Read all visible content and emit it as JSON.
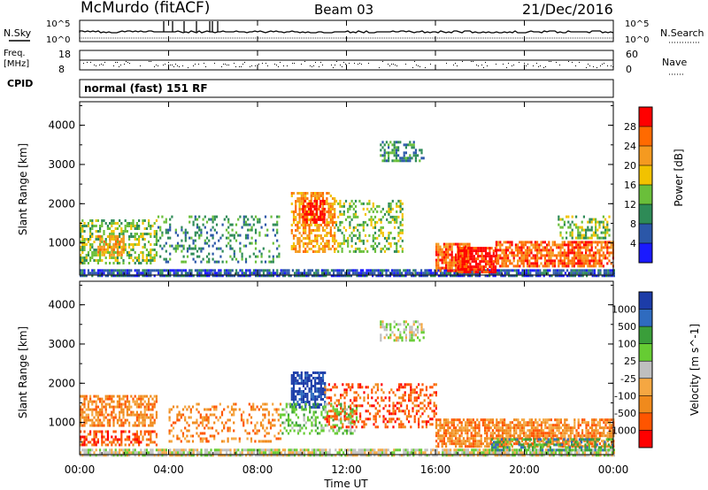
{
  "header": {
    "station": "McMurdo (fitACF)",
    "beam": "Beam 03",
    "date": "21/Dec/2016"
  },
  "aux_panels": {
    "nsky_label": "N.Sky",
    "nsearch_label": "N.Search",
    "nsky_ticks": [
      "10^5",
      "10^0"
    ],
    "nsearch_ticks": [
      "10^5",
      "10^0"
    ],
    "freq_label_1": "Freq.",
    "freq_label_2": "[MHz]",
    "freq_ticks": [
      "18",
      "8"
    ],
    "nave_label": "Nave",
    "nave_ticks": [
      "60",
      "0"
    ],
    "cpid_label": "CPID",
    "cpid_value": "normal (fast) 151 RF"
  },
  "colors": {
    "power": [
      "#1a1aff",
      "#2b57a8",
      "#2e8b57",
      "#6abf3a",
      "#f2c200",
      "#f59a20",
      "#ff6a00",
      "#ff0000"
    ],
    "velocity": [
      "#1c3ca8",
      "#2f6bbf",
      "#3a9e3a",
      "#66cc33",
      "#bfbfbf",
      "#f5a742",
      "#f08a1c",
      "#ff5500",
      "#ff0000"
    ]
  },
  "chart_data": [
    {
      "type": "heatmap",
      "quantity": "Power",
      "ylabel": "Slant Range [km]",
      "xlabel": "Time UT",
      "ylim": [
        180,
        4600
      ],
      "xlim": [
        0,
        24
      ],
      "x_ticks": [
        "00:00",
        "04:00",
        "08:00",
        "12:00",
        "16:00",
        "20:00",
        "00:00"
      ],
      "y_ticks": [
        1000,
        2000,
        3000,
        4000
      ],
      "colorbar": {
        "label": "Power [dB]",
        "range": [
          0,
          32
        ],
        "ticks": [
          "4",
          "8",
          "12",
          "16",
          "20",
          "24",
          "28"
        ]
      },
      "regions": [
        {
          "t": [
            0.0,
            24.0
          ],
          "r": [
            180,
            330
          ],
          "level": 1,
          "density": 0.8
        },
        {
          "t": [
            0.0,
            3.5
          ],
          "r": [
            450,
            1600
          ],
          "level": 3,
          "density": 0.5
        },
        {
          "t": [
            0.8,
            2.0
          ],
          "r": [
            700,
            1200
          ],
          "level": 5,
          "density": 0.6
        },
        {
          "t": [
            9.5,
            11.5
          ],
          "r": [
            800,
            2300
          ],
          "level": 5,
          "density": 0.6
        },
        {
          "t": [
            10.0,
            11.0
          ],
          "r": [
            1500,
            2100
          ],
          "level": 7,
          "density": 0.7
        },
        {
          "t": [
            13.5,
            15.5
          ],
          "r": [
            3100,
            3600
          ],
          "level": 2,
          "density": 0.5
        },
        {
          "t": [
            16.0,
            17.5
          ],
          "r": [
            300,
            1000
          ],
          "level": 6,
          "density": 0.8
        },
        {
          "t": [
            17.0,
            18.7
          ],
          "r": [
            250,
            900
          ],
          "level": 7,
          "density": 0.85
        },
        {
          "t": [
            18.7,
            24.0
          ],
          "r": [
            400,
            1050
          ],
          "level": 6,
          "density": 0.75
        },
        {
          "t": [
            21.5,
            23.8
          ],
          "r": [
            1100,
            1700
          ],
          "level": 3,
          "density": 0.4
        },
        {
          "t": [
            3.5,
            9.0
          ],
          "r": [
            500,
            1700
          ],
          "level": 2,
          "density": 0.25
        },
        {
          "t": [
            11.5,
            14.5
          ],
          "r": [
            800,
            2100
          ],
          "level": 3,
          "density": 0.35
        }
      ]
    },
    {
      "type": "heatmap",
      "quantity": "Velocity",
      "ylabel": "Slant Range [km]",
      "xlabel": "Time UT",
      "ylim": [
        180,
        4600
      ],
      "xlim": [
        0,
        24
      ],
      "x_ticks": [
        "00:00",
        "04:00",
        "08:00",
        "12:00",
        "16:00",
        "20:00",
        "00:00"
      ],
      "y_ticks": [
        1000,
        2000,
        3000,
        4000
      ],
      "colorbar": {
        "label": "Velocity [m s^-1]",
        "ticks": [
          "1000",
          "500",
          "100",
          "25",
          "-25",
          "-100",
          "-500",
          "-1000"
        ]
      },
      "regions": [
        {
          "t": [
            0.0,
            24.0
          ],
          "r": [
            180,
            330
          ],
          "level": 4,
          "density": 0.8
        },
        {
          "t": [
            0.0,
            3.5
          ],
          "r": [
            900,
            1700
          ],
          "level": 6,
          "density": 0.6
        },
        {
          "t": [
            0.0,
            3.5
          ],
          "r": [
            400,
            800
          ],
          "level": 7,
          "density": 0.5
        },
        {
          "t": [
            9.5,
            11.0
          ],
          "r": [
            1400,
            2300
          ],
          "level": 0,
          "density": 0.7
        },
        {
          "t": [
            9.0,
            12.5
          ],
          "r": [
            700,
            1500
          ],
          "level": 3,
          "density": 0.4
        },
        {
          "t": [
            13.5,
            15.5
          ],
          "r": [
            3100,
            3600
          ],
          "level": 4,
          "density": 0.5
        },
        {
          "t": [
            16.0,
            24.0
          ],
          "r": [
            400,
            1100
          ],
          "level": 6,
          "density": 0.75
        },
        {
          "t": [
            18.5,
            24.0
          ],
          "r": [
            300,
            600
          ],
          "level": 2,
          "density": 0.5
        },
        {
          "t": [
            11.0,
            16.0
          ],
          "r": [
            900,
            2000
          ],
          "level": 7,
          "density": 0.35
        },
        {
          "t": [
            4.0,
            9.0
          ],
          "r": [
            500,
            1500
          ],
          "level": 6,
          "density": 0.25
        }
      ]
    }
  ]
}
